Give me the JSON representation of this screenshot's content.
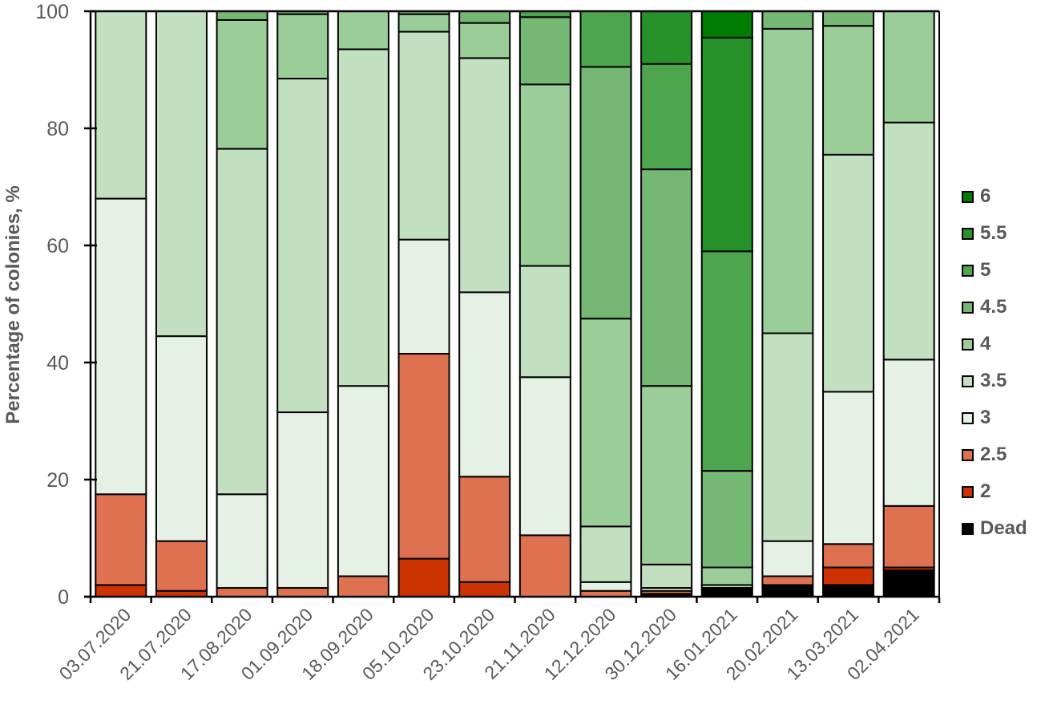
{
  "chart_data": {
    "type": "bar",
    "stacked": true,
    "title": "",
    "xlabel": "",
    "ylabel": "Percentage of colonies, %",
    "ylim": [
      0,
      100
    ],
    "yticks": [
      0,
      20,
      40,
      60,
      80,
      100
    ],
    "grid": false,
    "legend_position": "right",
    "categories": [
      "03.07.2020",
      "21.07.2020",
      "17.08.2020",
      "01.09.2020",
      "18.09.2020",
      "05.10.2020",
      "23.10.2020",
      "21.11.2020",
      "12.12.2020",
      "30.12.2020",
      "16.01.2021",
      "20.02.2021",
      "13.03.2021",
      "02.04.2021"
    ],
    "series": [
      {
        "name": "Dead",
        "color": "#000000",
        "values": [
          0,
          0,
          0,
          0,
          0,
          0,
          0,
          0,
          0,
          0.5,
          1.5,
          2,
          2,
          4.5
        ]
      },
      {
        "name": "2",
        "color": "#CC3300",
        "values": [
          2,
          1,
          0,
          0,
          0,
          6.5,
          2.5,
          0,
          0,
          0,
          0,
          0,
          3,
          0.5
        ]
      },
      {
        "name": "2.5",
        "color": "#DE7250",
        "values": [
          15.5,
          8.5,
          1.5,
          1.5,
          3.5,
          35,
          18,
          10.5,
          1,
          0.5,
          0,
          1.5,
          4,
          10.5
        ]
      },
      {
        "name": "3",
        "color": "#E5F1E4",
        "values": [
          50.5,
          35,
          16,
          30,
          32.5,
          19.5,
          31.5,
          27,
          1.5,
          0.5,
          0,
          6,
          26,
          25
        ]
      },
      {
        "name": "3.5",
        "color": "#C2E0C0",
        "values": [
          32,
          55.5,
          59,
          57,
          57.5,
          35.5,
          40,
          19,
          9.5,
          4,
          0.5,
          35.5,
          40.5,
          40.5
        ]
      },
      {
        "name": "4",
        "color": "#9BCD98",
        "values": [
          0,
          0,
          22,
          11,
          6.5,
          3,
          6,
          31,
          35.5,
          30.5,
          3,
          52,
          22,
          19
        ]
      },
      {
        "name": "4.5",
        "color": "#74B874",
        "values": [
          0,
          0,
          1.5,
          0.5,
          0,
          0.5,
          2,
          11.5,
          43,
          37,
          16.5,
          3,
          2.5,
          0
        ]
      },
      {
        "name": "5",
        "color": "#4DA64D",
        "values": [
          0,
          0,
          0,
          0,
          0,
          0,
          0,
          1,
          9.5,
          18,
          37.5,
          0,
          0,
          0
        ]
      },
      {
        "name": "5.5",
        "color": "#28922A",
        "values": [
          0,
          0,
          0,
          0,
          0,
          0,
          0,
          0,
          0,
          9,
          36.5,
          0,
          0,
          0
        ]
      },
      {
        "name": "6",
        "color": "#007D00",
        "values": [
          0,
          0,
          0,
          0,
          0,
          0,
          0,
          0,
          0,
          0,
          4.5,
          0,
          0,
          0
        ]
      }
    ]
  },
  "legend": {
    "items": [
      {
        "label": "6",
        "color": "#007D00"
      },
      {
        "label": "5.5",
        "color": "#28922A"
      },
      {
        "label": "5",
        "color": "#4DA64D"
      },
      {
        "label": "4.5",
        "color": "#74B874"
      },
      {
        "label": "4",
        "color": "#9BCD98"
      },
      {
        "label": "3.5",
        "color": "#C2E0C0"
      },
      {
        "label": "3",
        "color": "#E5F1E4"
      },
      {
        "label": "2.5",
        "color": "#DE7250"
      },
      {
        "label": "2",
        "color": "#CC3300"
      },
      {
        "label": "Dead",
        "color": "#000000"
      }
    ]
  }
}
